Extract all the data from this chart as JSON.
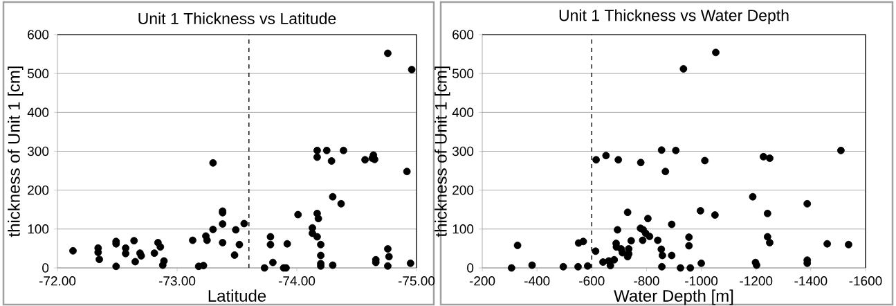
{
  "chart_data": [
    {
      "type": "scatter",
      "title": "Unit 1 Thickness vs Latitude",
      "xlabel": "Latitude",
      "ylabel": "thickness of Unit 1 [cm]",
      "x": [
        -72.13,
        -72.34,
        -72.34,
        -72.35,
        -72.49,
        -72.49,
        -72.49,
        -72.57,
        -72.57,
        -72.64,
        -72.65,
        -72.69,
        -72.7,
        -72.81,
        -72.84,
        -72.86,
        -72.89,
        -72.88,
        -73.13,
        -73.18,
        -73.22,
        -73.24,
        -73.25,
        -73.3,
        -73.3,
        -73.38,
        -73.38,
        -73.38,
        -73.38,
        -73.49,
        -73.48,
        -73.52,
        -73.56,
        -73.73,
        -73.78,
        -73.78,
        -73.8,
        -73.89,
        -73.91,
        -73.92,
        -74.01,
        -74.13,
        -74.13,
        -74.17,
        -74.17,
        -74.18,
        -74.17,
        -74.17,
        -74.2,
        -74.2,
        -74.2,
        -74.2,
        -74.25,
        -74.29,
        -74.3,
        -74.3,
        -74.37,
        -74.39,
        -74.57,
        -74.64,
        -74.65,
        -74.63,
        -74.66,
        -74.66,
        -74.76,
        -74.76,
        -74.77,
        -74.76,
        -74.92,
        -74.96,
        -74.95
      ],
      "values": [
        44,
        51,
        40,
        22,
        4,
        68,
        62,
        51,
        37,
        70,
        16,
        38,
        31,
        38,
        65,
        54,
        18,
        7,
        71,
        4,
        6,
        82,
        71,
        99,
        270,
        113,
        146,
        142,
        65,
        98,
        33,
        60,
        114,
        0,
        80,
        60,
        14,
        0,
        0,
        62,
        137,
        103,
        89,
        80,
        140,
        127,
        302,
        285,
        60,
        32,
        11,
        5,
        302,
        275,
        183,
        7,
        165,
        302,
        278,
        290,
        279,
        282,
        21,
        14,
        552,
        49,
        29,
        5,
        248,
        510,
        12
      ],
      "color": "#000000",
      "marker": "circle",
      "grid": "y",
      "xlim": [
        -72,
        -75
      ],
      "ylim": [
        0,
        600
      ],
      "xticks": [
        {
          "value": -72,
          "label": "-72.00"
        },
        {
          "value": -73,
          "label": "-73.00"
        },
        {
          "value": -74,
          "label": "-74.00"
        },
        {
          "value": -75,
          "label": "-75.00"
        }
      ],
      "yticks": [
        0,
        100,
        200,
        300,
        400,
        500,
        600
      ],
      "ref_lines": [
        {
          "axis": "x",
          "value": -73.6,
          "color": "#000000",
          "line_style": "dashed"
        }
      ]
    },
    {
      "type": "scatter",
      "title": "Unit 1 Thickness vs Water Depth",
      "xlabel": "Water Depth [m]",
      "ylabel": "thickness of Unit 1 [cm]",
      "x": [
        -307,
        -329,
        -382,
        -496,
        -550,
        -552,
        -569,
        -585,
        -614,
        -616,
        -652,
        -641,
        -662,
        -668,
        -682,
        -689,
        -690,
        -694,
        -697,
        -707,
        -712,
        -731,
        -735,
        -735,
        -731,
        -744,
        -778,
        -779,
        -786,
        -788,
        -797,
        -805,
        -811,
        -841,
        -855,
        -854,
        -858,
        -856,
        -869,
        -892,
        -892,
        -907,
        -935,
        -924,
        -955,
        -955,
        -960,
        -997,
        -1000,
        -1013,
        -1050,
        -1053,
        -1188,
        -1198,
        -1202,
        -1227,
        -1250,
        -1242,
        -1242,
        -1250,
        -1387,
        -1387,
        -1387,
        -1460,
        -1510,
        -1538
      ],
      "values": [
        0,
        58,
        7,
        3,
        3,
        64,
        68,
        5,
        43,
        278,
        289,
        15,
        18,
        6,
        21,
        63,
        54,
        98,
        278,
        49,
        39,
        143,
        49,
        36,
        29,
        70,
        102,
        271,
        71,
        98,
        89,
        127,
        81,
        71,
        303,
        48,
        32,
        3,
        248,
        112,
        32,
        302,
        512,
        0,
        79,
        57,
        0,
        147,
        12,
        276,
        136,
        554,
        183,
        14,
        7,
        286,
        282,
        140,
        80,
        65,
        165,
        20,
        12,
        62,
        302,
        60
      ],
      "color": "#000000",
      "marker": "circle",
      "grid": "y",
      "xlim": [
        -200,
        -1600
      ],
      "ylim": [
        0,
        600
      ],
      "xticks": [
        -200,
        -400,
        -600,
        -800,
        -1000,
        -1200,
        -1400,
        -1600
      ],
      "yticks": [
        0,
        100,
        200,
        300,
        400,
        500,
        600
      ],
      "ref_lines": [
        {
          "axis": "x",
          "value": -600,
          "color": "#000000",
          "line_style": "dashed"
        }
      ]
    }
  ]
}
